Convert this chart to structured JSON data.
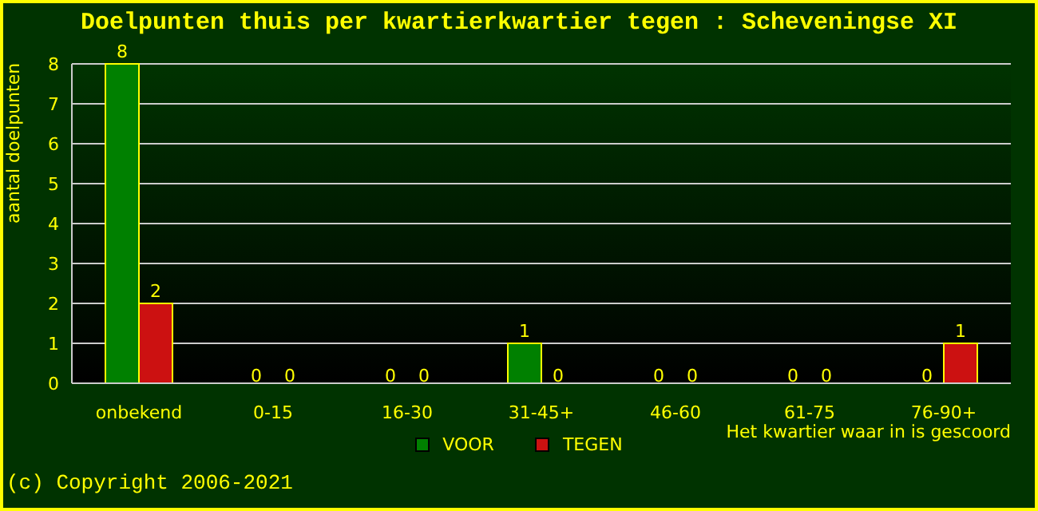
{
  "chart_data": {
    "type": "bar",
    "title": "Doelpunten thuis per kwartierkwartier tegen : Scheveningse XI",
    "xlabel": "Het kwartier waar in is gescoord",
    "ylabel": "aantal doelpunten",
    "categories": [
      "onbekend",
      "0-15",
      "16-30",
      "31-45+",
      "46-60",
      "61-75",
      "76-90+"
    ],
    "series": [
      {
        "name": "VOOR",
        "color": "#008000",
        "values": [
          8,
          0,
          0,
          1,
          0,
          0,
          0
        ]
      },
      {
        "name": "TEGEN",
        "color": "#cc1111",
        "values": [
          2,
          0,
          0,
          0,
          0,
          0,
          1
        ]
      }
    ],
    "ylim": [
      0,
      8
    ],
    "yticks": [
      0,
      1,
      2,
      3,
      4,
      5,
      6,
      7,
      8
    ],
    "grid": "y",
    "legend": "bottom",
    "data_labels": true,
    "annotations": [
      "(c) Copyright 2006-2021"
    ]
  }
}
